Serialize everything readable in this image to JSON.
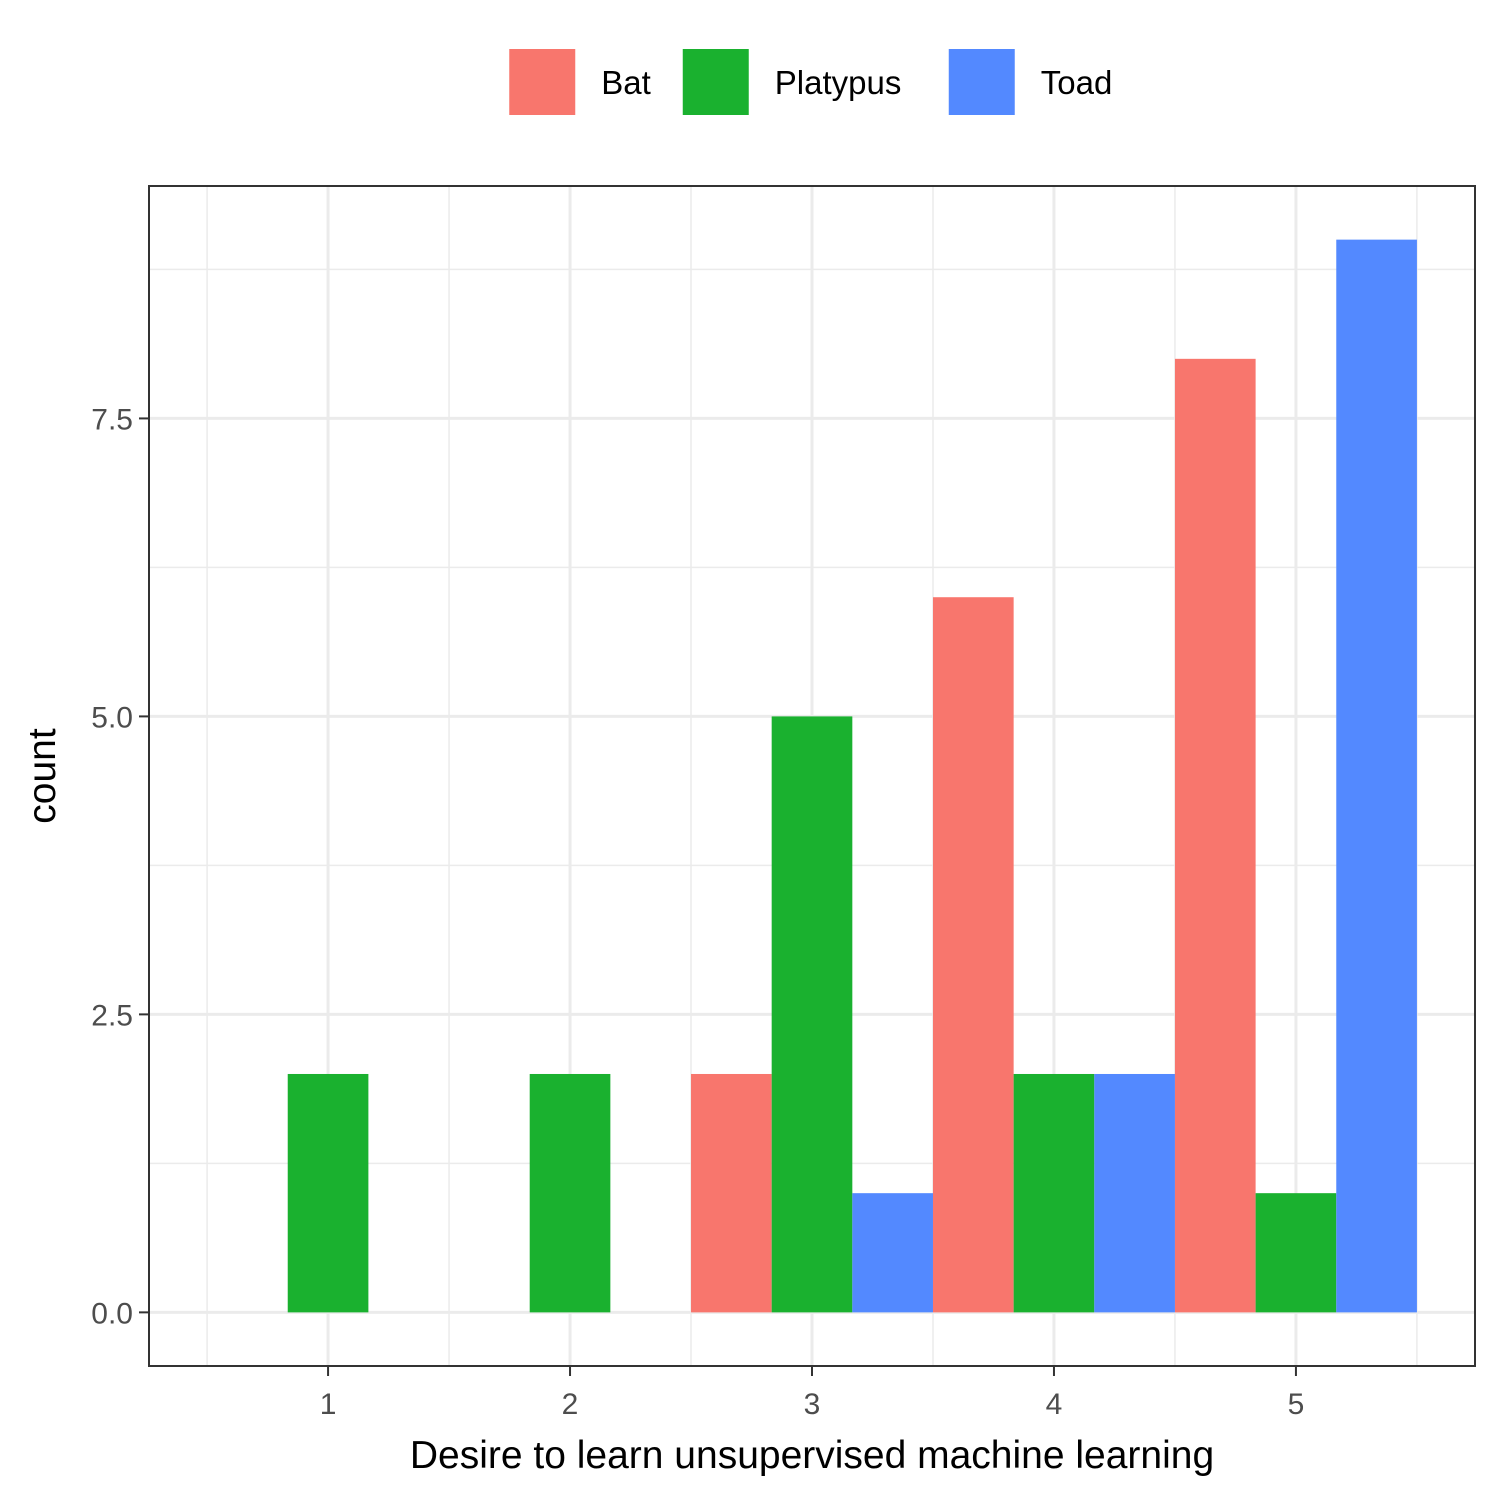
{
  "chart_data": {
    "type": "bar",
    "position": "dodge",
    "title": "",
    "xlabel": "Desire to learn unsupervised machine learning",
    "ylabel": "count",
    "categories": [
      "1",
      "2",
      "3",
      "4",
      "5"
    ],
    "series": [
      {
        "name": "Bat",
        "color": "#F8766D",
        "values": [
          0,
          0,
          2,
          6,
          8
        ]
      },
      {
        "name": "Platypus",
        "color": "#1AB12F",
        "values": [
          2,
          2,
          5,
          2,
          1
        ]
      },
      {
        "name": "Toad",
        "color": "#5389FF",
        "values": [
          0,
          0,
          1,
          2,
          9
        ]
      }
    ],
    "ylim": [
      -0.45,
      9.45
    ],
    "xlim": [
      0.26,
      5.74
    ],
    "yticks": [
      0,
      2.5,
      5,
      7.5
    ],
    "ytick_labels": [
      "0.0",
      "2.5",
      "5.0",
      "7.5"
    ],
    "grid": true,
    "legend_position": "top"
  }
}
